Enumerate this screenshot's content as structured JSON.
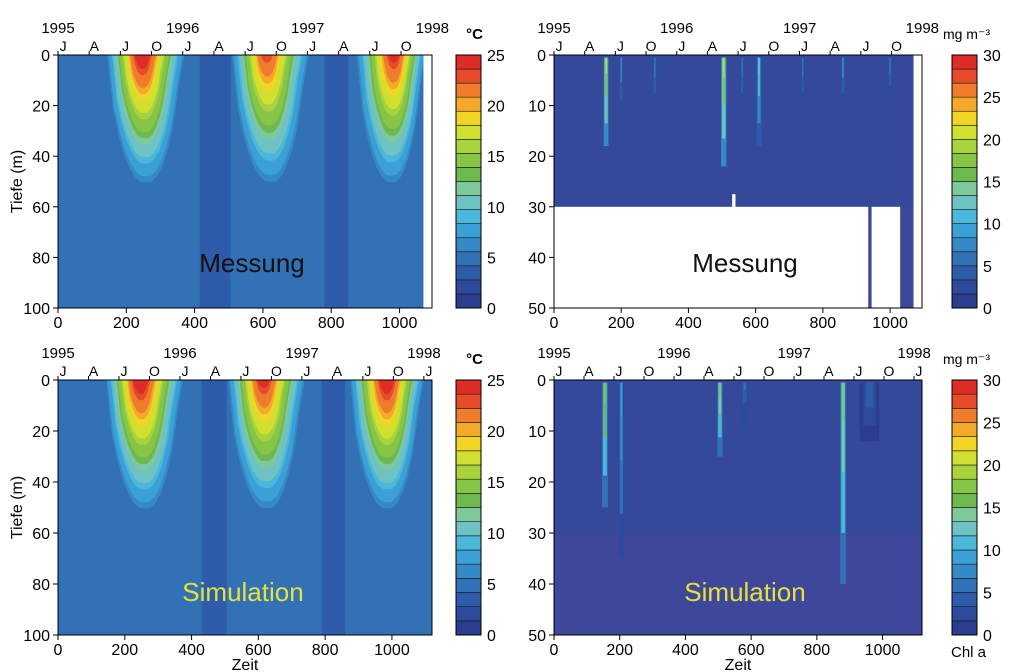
{
  "chart_data": [
    {
      "type": "heatmap",
      "panel": "temperature-measurement",
      "label": "Messung",
      "ylabel": "Tiefe (m)",
      "xlabel": "",
      "xlim": [
        0,
        1095
      ],
      "x_ticks": [
        0,
        200,
        400,
        600,
        800,
        1000
      ],
      "ylim": [
        0,
        100
      ],
      "y_ticks": [
        0,
        20,
        40,
        60,
        80,
        100
      ],
      "y_inverted": true,
      "year_labels": [
        {
          "x": 0,
          "text": "1995"
        },
        {
          "x": 365,
          "text": "1996"
        },
        {
          "x": 731,
          "text": "1997"
        },
        {
          "x": 1096,
          "text": "1998"
        }
      ],
      "month_labels": [
        "J",
        "A",
        "J",
        "O",
        "J",
        "A",
        "J",
        "O",
        "J",
        "A",
        "J",
        "O",
        "J"
      ],
      "colorbar": {
        "unit": "°C",
        "min": 0,
        "max": 25,
        "ticks": [
          0,
          5,
          10,
          15,
          20,
          25
        ],
        "bottom_label": ""
      },
      "data_end_day": 1070,
      "seasons": [
        {
          "t0": 140,
          "tpeak": 245,
          "t1": 375,
          "surface_max": 25
        },
        {
          "t0": 505,
          "tpeak": 610,
          "t1": 740,
          "surface_max": 23
        },
        {
          "t0": 870,
          "tpeak": 985,
          "t1": 1080,
          "surface_max": 24
        }
      ],
      "winter_blocks": [
        {
          "x0": 415,
          "x1": 505,
          "value": 4
        },
        {
          "x0": 780,
          "x1": 850,
          "value": 4
        }
      ],
      "deep_value": 4.5,
      "data_gaps": []
    },
    {
      "type": "heatmap",
      "panel": "chlorophyll-measurement",
      "label": "Messung",
      "ylabel": "",
      "xlabel": "",
      "xlim": [
        0,
        1095
      ],
      "x_ticks": [
        0,
        200,
        400,
        600,
        800,
        1000
      ],
      "ylim": [
        0,
        50
      ],
      "y_ticks": [
        0,
        10,
        20,
        30,
        40,
        50
      ],
      "y_inverted": true,
      "year_labels": [
        {
          "x": 0,
          "text": "1995"
        },
        {
          "x": 365,
          "text": "1996"
        },
        {
          "x": 731,
          "text": "1997"
        },
        {
          "x": 1096,
          "text": "1998"
        }
      ],
      "month_labels": [
        "J",
        "A",
        "J",
        "O",
        "J",
        "A",
        "J",
        "O",
        "J",
        "A",
        "J",
        "O",
        "J"
      ],
      "colorbar": {
        "unit": "mg m⁻³",
        "min": 0,
        "max": 30,
        "ticks": [
          0,
          5,
          10,
          15,
          20,
          25,
          30
        ],
        "bottom_label": ""
      },
      "data_end_day": 1070,
      "background_value": 2,
      "blooms": [
        {
          "x": 155,
          "w": 14,
          "depth": 18,
          "peak": 20
        },
        {
          "x": 200,
          "w": 10,
          "depth": 12,
          "peak": 8
        },
        {
          "x": 300,
          "w": 12,
          "depth": 10,
          "peak": 6
        },
        {
          "x": 505,
          "w": 16,
          "depth": 22,
          "peak": 20
        },
        {
          "x": 560,
          "w": 10,
          "depth": 10,
          "peak": 6
        },
        {
          "x": 610,
          "w": 14,
          "depth": 18,
          "peak": 12
        },
        {
          "x": 740,
          "w": 10,
          "depth": 10,
          "peak": 6
        },
        {
          "x": 860,
          "w": 12,
          "depth": 10,
          "peak": 8
        },
        {
          "x": 1000,
          "w": 12,
          "depth": 8,
          "peak": 6
        }
      ],
      "data_gaps": [
        {
          "x0": 0,
          "x1": 935,
          "y0": 30,
          "y1": 50
        },
        {
          "x0": 530,
          "x1": 540,
          "y0": 27.5,
          "y1": 30
        },
        {
          "x0": 945,
          "x1": 1030,
          "y0": 30,
          "y1": 50
        }
      ]
    },
    {
      "type": "heatmap",
      "panel": "temperature-simulation",
      "label": "Simulation",
      "ylabel": "Tiefe (m)",
      "xlabel": "Zeit",
      "xlim": [
        0,
        1120
      ],
      "x_ticks": [
        0,
        200,
        400,
        600,
        800,
        1000
      ],
      "ylim": [
        0,
        100
      ],
      "y_ticks": [
        0,
        20,
        40,
        60,
        80,
        100
      ],
      "y_inverted": true,
      "year_labels": [
        {
          "x": 0,
          "text": "1995"
        },
        {
          "x": 365,
          "text": "1996"
        },
        {
          "x": 731,
          "text": "1997"
        },
        {
          "x": 1096,
          "text": "1998"
        }
      ],
      "month_labels": [
        "J",
        "A",
        "J",
        "O",
        "J",
        "A",
        "J",
        "O",
        "J",
        "A",
        "J",
        "O",
        "J"
      ],
      "colorbar": {
        "unit": "°C",
        "min": 0,
        "max": 25,
        "ticks": [
          0,
          5,
          10,
          15,
          20,
          25
        ],
        "bottom_label": ""
      },
      "data_end_day": 1120,
      "seasons": [
        {
          "t0": 140,
          "tpeak": 245,
          "t1": 380,
          "surface_max": 25
        },
        {
          "t0": 505,
          "tpeak": 615,
          "t1": 745,
          "surface_max": 24
        },
        {
          "t0": 870,
          "tpeak": 985,
          "t1": 1100,
          "surface_max": 25
        }
      ],
      "winter_blocks": [
        {
          "x0": 430,
          "x1": 505,
          "value": 4
        },
        {
          "x0": 790,
          "x1": 860,
          "value": 4
        }
      ],
      "deep_value": 4.5,
      "data_gaps": []
    },
    {
      "type": "heatmap",
      "panel": "chlorophyll-simulation",
      "label": "Simulation",
      "ylabel": "",
      "xlabel": "Zeit",
      "xlim": [
        0,
        1120
      ],
      "x_ticks": [
        0,
        200,
        400,
        600,
        800,
        1000
      ],
      "ylim": [
        0,
        50
      ],
      "y_ticks": [
        0,
        10,
        20,
        30,
        40,
        50
      ],
      "y_inverted": true,
      "year_labels": [
        {
          "x": 0,
          "text": "1995"
        },
        {
          "x": 365,
          "text": "1996"
        },
        {
          "x": 731,
          "text": "1997"
        },
        {
          "x": 1096,
          "text": "1998"
        }
      ],
      "month_labels": [
        "J",
        "A",
        "J",
        "O",
        "J",
        "A",
        "J",
        "O",
        "J",
        "A",
        "J",
        "O",
        "J"
      ],
      "colorbar": {
        "unit": "mg m⁻³",
        "min": 0,
        "max": 30,
        "ticks": [
          0,
          5,
          10,
          15,
          20,
          25,
          30
        ],
        "bottom_label": "Chl a"
      },
      "data_end_day": 1120,
      "background_value": 1.5,
      "blooms": [
        {
          "x": 155,
          "w": 18,
          "depth": 25,
          "peak": 18
        },
        {
          "x": 205,
          "w": 16,
          "depth": 35,
          "peak": 9
        },
        {
          "x": 505,
          "w": 16,
          "depth": 15,
          "peak": 17
        },
        {
          "x": 580,
          "w": 30,
          "depth": 10,
          "peak": 5
        },
        {
          "x": 880,
          "w": 18,
          "depth": 40,
          "peak": 17
        },
        {
          "x": 960,
          "w": 60,
          "depth": 12,
          "peak": 4
        }
      ],
      "data_gaps": []
    }
  ],
  "colors": {
    "palette": [
      "#2c3c8f",
      "#2d4a9c",
      "#2f5caa",
      "#3271b6",
      "#3589c5",
      "#3aa0d6",
      "#4bb7da",
      "#6ec2c4",
      "#7ec89e",
      "#6db94f",
      "#86c545",
      "#a9d23f",
      "#d1df2e",
      "#f0d525",
      "#f3aa2b",
      "#ef7b2c",
      "#e84b2a",
      "#e02c26"
    ],
    "background_chl": "#3e479a",
    "gap": "#ffffff",
    "panel_label_dark": "#111111",
    "panel_label_yellow": "#e6e23d"
  }
}
